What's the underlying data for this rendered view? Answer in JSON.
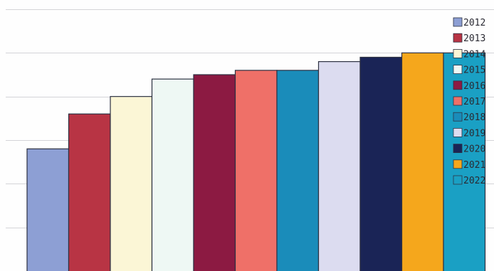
{
  "chart_data": {
    "type": "bar",
    "title": "",
    "xlabel": "",
    "ylabel": "",
    "grid": true,
    "legend_placement": "right",
    "ylim": [
      0,
      6
    ],
    "categories": [
      "2012",
      "2013",
      "2014",
      "2015",
      "2016",
      "2017",
      "2018",
      "2019",
      "2020",
      "2021",
      "2022"
    ],
    "values": [
      2.8,
      3.6,
      4.0,
      4.4,
      4.5,
      4.6,
      4.6,
      4.8,
      4.9,
      5.0,
      5.0
    ],
    "colors": [
      "#8d9fd4",
      "#b83444",
      "#fbf6d6",
      "#eef8f4",
      "#8c1a42",
      "#ef7068",
      "#1a8cba",
      "#dcdcf0",
      "#1a2456",
      "#f5a71c",
      "#1aa0c4"
    ],
    "legend": [
      {
        "label": "2012",
        "color": "#8d9fd4"
      },
      {
        "label": "2013",
        "color": "#b83444"
      },
      {
        "label": "2014",
        "color": "#fbf6d6"
      },
      {
        "label": "2015",
        "color": "#eef8f4"
      },
      {
        "label": "2016",
        "color": "#8c1a42"
      },
      {
        "label": "2017",
        "color": "#ef7068"
      },
      {
        "label": "2018",
        "color": "#1a8cba"
      },
      {
        "label": "2019",
        "color": "#dcdcf0"
      },
      {
        "label": "2020",
        "color": "#1a2456"
      },
      {
        "label": "2021",
        "color": "#f5a71c"
      },
      {
        "label": "2022",
        "color": "#1aa0c4"
      }
    ]
  }
}
